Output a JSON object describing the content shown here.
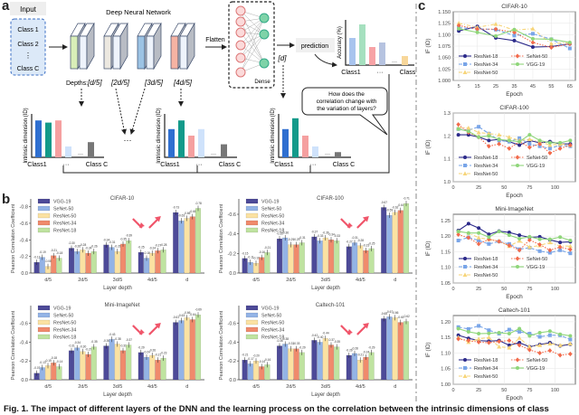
{
  "panel_labels": {
    "a": "a",
    "b": "b",
    "c": "c"
  },
  "diagram": {
    "input_label": "Input",
    "classes": [
      "Class 1",
      "Class 2",
      "⋮",
      "Class C"
    ],
    "network_title": "Deep Neural Network",
    "flatten": "Flatten",
    "dense": "Dense",
    "prediction": "prediction",
    "depth_prefix": "Depths:",
    "depths": [
      "[d/5]",
      "[2d/5]",
      "[3d/5]",
      "[4d/5]",
      "[d]"
    ],
    "accuracy_axis": "Accuracy (%)",
    "id_axis": "Intrinsic dimension (ID)",
    "class_first": "Class1",
    "class_last": "Class C",
    "ellipsis": "···",
    "question": [
      "How does the",
      "correlation change with",
      "the variation of layers?"
    ],
    "colors": {
      "layer1": "#d9eeb8",
      "layer2": "#ece8e0",
      "layer3": "#9cc3e4",
      "layer4": "#f6b3a3",
      "input_box": "#dce9f8",
      "input_border": "#3b6fc4"
    }
  },
  "chart_data": [
    {
      "type": "bar",
      "title": "CIFAR-10",
      "xlabel": "Layer depth",
      "ylabel": "Pearson Correlation Coefficient",
      "categories": [
        "d/5",
        "2d/5",
        "3d/5",
        "4d/5",
        "d"
      ],
      "yticks": [
        "0.0",
        "-0.2",
        "-0.4",
        "-0.6",
        "-0.8"
      ],
      "ylim": [
        0,
        -0.85
      ],
      "legend": "top-left",
      "series": [
        {
          "name": "VGG-19",
          "color": "#4d4a98",
          "values": [
            -0.13,
            -0.3,
            -0.34,
            -0.25,
            -0.73
          ]
        },
        {
          "name": "SeNet-50",
          "color": "#93b3e6",
          "values": [
            -0.19,
            -0.26,
            -0.31,
            -0.18,
            -0.63
          ]
        },
        {
          "name": "ResNet-50",
          "color": "#fbe2a2",
          "values": [
            -0.08,
            -0.28,
            -0.26,
            -0.24,
            -0.66
          ]
        },
        {
          "name": "ResNet-34",
          "color": "#f08a6c",
          "values": [
            -0.21,
            -0.24,
            -0.35,
            -0.27,
            -0.68
          ]
        },
        {
          "name": "ResNet-18",
          "color": "#bfe3a0",
          "values": [
            -0.18,
            -0.26,
            -0.39,
            -0.28,
            -0.78
          ]
        }
      ]
    },
    {
      "type": "bar",
      "title": "CIFAR-100",
      "xlabel": "Layer depth",
      "ylabel": "Pearson Correlation Coefficient",
      "categories": [
        "d/5",
        "2d/5",
        "3d/5",
        "4d/5",
        "d"
      ],
      "yticks": [
        "0.0",
        "-0.2",
        "-0.4",
        "-0.6"
      ],
      "ylim": [
        0,
        -0.72
      ],
      "legend": "top-left",
      "series": [
        {
          "name": "VGG-19",
          "color": "#4d4a98",
          "values": [
            -0.15,
            -0.35,
            -0.37,
            -0.27,
            -0.67
          ]
        },
        {
          "name": "SeNet-50",
          "color": "#93b3e6",
          "values": [
            -0.11,
            -0.36,
            -0.33,
            -0.31,
            -0.59
          ]
        },
        {
          "name": "ResNet-50",
          "color": "#fbe2a2",
          "values": [
            -0.1,
            -0.29,
            -0.36,
            -0.28,
            -0.62
          ]
        },
        {
          "name": "ResNet-34",
          "color": "#f08a6c",
          "values": [
            -0.16,
            -0.29,
            -0.34,
            -0.23,
            -0.64
          ]
        },
        {
          "name": "ResNet-18",
          "color": "#bfe3a0",
          "values": [
            -0.21,
            -0.31,
            -0.33,
            -0.25,
            -0.71
          ]
        }
      ]
    },
    {
      "type": "bar",
      "title": "Mini-ImageNet",
      "xlabel": "Layer depth",
      "ylabel": "Pearson Correlation Coefficient",
      "categories": [
        "d/5",
        "2d/5",
        "3d/5",
        "4d/5",
        "d"
      ],
      "yticks": [
        "0.0",
        "-0.2",
        "-0.4",
        "-0.6"
      ],
      "ylim": [
        0,
        -0.75
      ],
      "legend": "top-left",
      "series": [
        {
          "name": "VGG-19",
          "color": "#4d4a98",
          "values": [
            -0.07,
            -0.31,
            -0.36,
            -0.29,
            -0.61
          ]
        },
        {
          "name": "SeNet-50",
          "color": "#93b3e6",
          "values": [
            -0.13,
            -0.34,
            -0.43,
            -0.24,
            -0.63
          ]
        },
        {
          "name": "ResNet-50",
          "color": "#fbe2a2",
          "values": [
            -0.15,
            -0.3,
            -0.38,
            -0.26,
            -0.66
          ]
        },
        {
          "name": "ResNet-34",
          "color": "#f08a6c",
          "values": [
            -0.18,
            -0.27,
            -0.31,
            -0.21,
            -0.64
          ]
        },
        {
          "name": "ResNet-18",
          "color": "#bfe3a0",
          "values": [
            -0.14,
            -0.35,
            -0.37,
            -0.23,
            -0.69
          ]
        }
      ]
    },
    {
      "type": "bar",
      "title": "Caltech-101",
      "xlabel": "Layer depth",
      "ylabel": "Pearson Correlation Coefficient",
      "categories": [
        "d/5",
        "2d/5",
        "3d/5",
        "4d/5",
        "d"
      ],
      "yticks": [
        "0.0",
        "-0.2",
        "-0.4",
        "-0.6"
      ],
      "ylim": [
        0,
        -0.75
      ],
      "legend": "top-left",
      "series": [
        {
          "name": "VGG-19",
          "color": "#4d4a98",
          "values": [
            -0.21,
            -0.36,
            -0.42,
            -0.26,
            -0.65
          ]
        },
        {
          "name": "SeNet-50",
          "color": "#93b3e6",
          "values": [
            -0.17,
            -0.38,
            -0.4,
            -0.28,
            -0.67
          ]
        },
        {
          "name": "ResNet-50",
          "color": "#fbe2a2",
          "values": [
            -0.2,
            -0.33,
            -0.44,
            -0.21,
            -0.66
          ]
        },
        {
          "name": "ResNet-34",
          "color": "#f08a6c",
          "values": [
            -0.14,
            -0.33,
            -0.37,
            -0.24,
            -0.61
          ]
        },
        {
          "name": "ResNet-18",
          "color": "#bfe3a0",
          "values": [
            -0.16,
            -0.29,
            -0.35,
            -0.29,
            -0.62
          ]
        }
      ]
    },
    {
      "type": "line",
      "title": "CIFAR-10",
      "xlabel": "Epoch",
      "ylabel": "IF (ID)",
      "x": [
        5,
        15,
        25,
        35,
        45,
        55,
        65
      ],
      "xticks": [
        5,
        15,
        25,
        35,
        45,
        55,
        65
      ],
      "xlim": [
        2,
        68
      ],
      "yticks": [
        "1.000",
        "1.025",
        "1.050",
        "1.075",
        "1.100",
        "1.125",
        "1.150"
      ],
      "ylim": [
        1.0,
        1.15
      ],
      "grid": true,
      "legend": "bottom-left",
      "series": [
        {
          "name": "ResNet-18",
          "color": "#2c2a8a",
          "dash": "",
          "marker": "circle",
          "values": [
            1.108,
            1.118,
            1.093,
            1.087,
            1.073,
            1.074,
            1.08
          ]
        },
        {
          "name": "ResNet-34",
          "color": "#79a5e8",
          "dash": "4,2",
          "marker": "square",
          "values": [
            1.115,
            1.113,
            1.111,
            1.098,
            1.102,
            1.09,
            1.07
          ]
        },
        {
          "name": "ResNet-50",
          "color": "#f7d57a",
          "dash": "4,2,1,2",
          "marker": "triangle",
          "values": [
            1.125,
            1.116,
            1.123,
            1.11,
            1.113,
            1.08,
            1.083
          ]
        },
        {
          "name": "SeNet-50",
          "color": "#f26a4b",
          "dash": "1.5,1.5",
          "marker": "diamond",
          "values": [
            1.12,
            1.112,
            1.112,
            1.105,
            1.083,
            1.072,
            1.08
          ]
        },
        {
          "name": "VGG-19",
          "color": "#8fd67a",
          "dash": "",
          "marker": "circle",
          "values": [
            1.113,
            1.105,
            1.097,
            1.111,
            1.091,
            1.09,
            1.083
          ]
        }
      ]
    },
    {
      "type": "line",
      "title": "CIFAR-100",
      "xlabel": "Epoch",
      "ylabel": "IF (ID)",
      "x": [
        5,
        15,
        25,
        35,
        45,
        55,
        65,
        75,
        85,
        95,
        105,
        115
      ],
      "xticks": [
        0,
        25,
        50,
        75,
        100
      ],
      "xlim": [
        0,
        120
      ],
      "yticks": [
        "1.0",
        "1.1",
        "1.2",
        "1.3"
      ],
      "ylim": [
        1.0,
        1.3
      ],
      "grid": true,
      "legend": "bottom-left",
      "series": [
        {
          "name": "ResNet-18",
          "color": "#2c2a8a",
          "dash": "",
          "marker": "circle",
          "values": [
            1.205,
            1.205,
            1.195,
            1.18,
            1.185,
            1.175,
            1.16,
            1.18,
            1.17,
            1.175,
            1.165,
            1.165
          ]
        },
        {
          "name": "ResNet-34",
          "color": "#79a5e8",
          "dash": "4,2",
          "marker": "square",
          "values": [
            1.23,
            1.225,
            1.24,
            1.21,
            1.18,
            1.175,
            1.19,
            1.165,
            1.155,
            1.145,
            1.16,
            1.155
          ]
        },
        {
          "name": "ResNet-50",
          "color": "#f7d57a",
          "dash": "4,2,1,2",
          "marker": "triangle",
          "values": [
            1.235,
            1.235,
            1.215,
            1.21,
            1.205,
            1.195,
            1.18,
            1.185,
            1.175,
            1.16,
            1.165,
            1.16
          ]
        },
        {
          "name": "SeNet-50",
          "color": "#f26a4b",
          "dash": "1.5,1.5",
          "marker": "diamond",
          "values": [
            1.25,
            1.215,
            1.195,
            1.155,
            1.165,
            1.145,
            1.175,
            1.15,
            1.165,
            1.125,
            1.145,
            1.16
          ]
        },
        {
          "name": "VGG-19",
          "color": "#8fd67a",
          "dash": "",
          "marker": "circle",
          "values": [
            1.23,
            1.22,
            1.195,
            1.2,
            1.185,
            1.18,
            1.175,
            1.205,
            1.18,
            1.17,
            1.17,
            1.18
          ]
        }
      ]
    },
    {
      "type": "line",
      "title": "Mini-ImageNet",
      "xlabel": "Epoch",
      "ylabel": "IF (ID)",
      "x": [
        5,
        15,
        25,
        35,
        45,
        55,
        65,
        75,
        85,
        95,
        105,
        115
      ],
      "xticks": [
        0,
        25,
        50,
        75,
        100
      ],
      "xlim": [
        0,
        120
      ],
      "yticks": [
        "1.05",
        "1.10",
        "1.15",
        "1.20",
        "1.25"
      ],
      "ylim": [
        1.05,
        1.27
      ],
      "grid": true,
      "legend": "bottom-left",
      "series": [
        {
          "name": "ResNet-18",
          "color": "#2c2a8a",
          "dash": "",
          "marker": "circle",
          "values": [
            1.218,
            1.24,
            1.226,
            1.206,
            1.216,
            1.212,
            1.203,
            1.196,
            1.198,
            1.188,
            1.18,
            1.182
          ]
        },
        {
          "name": "ResNet-34",
          "color": "#79a5e8",
          "dash": "4,2",
          "marker": "square",
          "values": [
            1.186,
            1.196,
            1.186,
            1.175,
            1.183,
            1.175,
            1.158,
            1.163,
            1.152,
            1.147,
            1.155,
            1.145
          ]
        },
        {
          "name": "ResNet-50",
          "color": "#f7d57a",
          "dash": "4,2,1,2",
          "marker": "triangle",
          "values": [
            1.215,
            1.21,
            1.195,
            1.19,
            1.185,
            1.168,
            1.185,
            1.165,
            1.17,
            1.18,
            1.168,
            1.168
          ]
        },
        {
          "name": "SeNet-50",
          "color": "#f26a4b",
          "dash": "1.5,1.5",
          "marker": "diamond",
          "values": [
            1.205,
            1.195,
            1.175,
            1.19,
            1.183,
            1.17,
            1.155,
            1.188,
            1.173,
            1.155,
            1.165,
            1.157
          ]
        },
        {
          "name": "VGG-19",
          "color": "#8fd67a",
          "dash": "",
          "marker": "circle",
          "values": [
            1.215,
            1.21,
            1.21,
            1.197,
            1.215,
            1.203,
            1.192,
            1.198,
            1.19,
            1.19,
            1.197,
            1.186
          ]
        }
      ]
    },
    {
      "type": "line",
      "title": "Caltech-101",
      "xlabel": "Epoch",
      "ylabel": "IF (ID)",
      "x": [
        5,
        15,
        25,
        35,
        45,
        55,
        65,
        75,
        85,
        95,
        105,
        115
      ],
      "xticks": [
        0,
        25,
        50,
        75,
        100
      ],
      "xlim": [
        0,
        120
      ],
      "yticks": [
        "1.00",
        "1.05",
        "1.10",
        "1.15",
        "1.20"
      ],
      "ylim": [
        1.0,
        1.22
      ],
      "grid": true,
      "legend": "bottom-left",
      "series": [
        {
          "name": "ResNet-18",
          "color": "#2c2a8a",
          "dash": "",
          "marker": "circle",
          "values": [
            1.157,
            1.147,
            1.14,
            1.138,
            1.14,
            1.125,
            1.133,
            1.12,
            1.127,
            1.133,
            1.123,
            1.128
          ]
        },
        {
          "name": "ResNet-34",
          "color": "#79a5e8",
          "dash": "4,2",
          "marker": "square",
          "values": [
            1.183,
            1.177,
            1.187,
            1.173,
            1.162,
            1.175,
            1.168,
            1.162,
            1.152,
            1.157,
            1.157,
            1.143
          ]
        },
        {
          "name": "ResNet-50",
          "color": "#f7d57a",
          "dash": "4,2,1,2",
          "marker": "triangle",
          "values": [
            1.15,
            1.135,
            1.145,
            1.15,
            1.12,
            1.117,
            1.148,
            1.12,
            1.125,
            1.13,
            1.125,
            1.13
          ]
        },
        {
          "name": "SeNet-50",
          "color": "#f26a4b",
          "dash": "1.5,1.5",
          "marker": "diamond",
          "values": [
            1.145,
            1.14,
            1.135,
            1.133,
            1.137,
            1.14,
            1.125,
            1.11,
            1.1,
            1.108,
            1.093,
            1.097
          ]
        },
        {
          "name": "VGG-19",
          "color": "#8fd67a",
          "dash": "",
          "marker": "circle",
          "values": [
            1.178,
            1.168,
            1.162,
            1.163,
            1.165,
            1.162,
            1.178,
            1.155,
            1.165,
            1.17,
            1.16,
            1.155
          ]
        }
      ]
    }
  ],
  "caption": "Fig. 1. The impact of different layers of the DNN and the learning process on the correlation between the intrinsic dimensions of class"
}
